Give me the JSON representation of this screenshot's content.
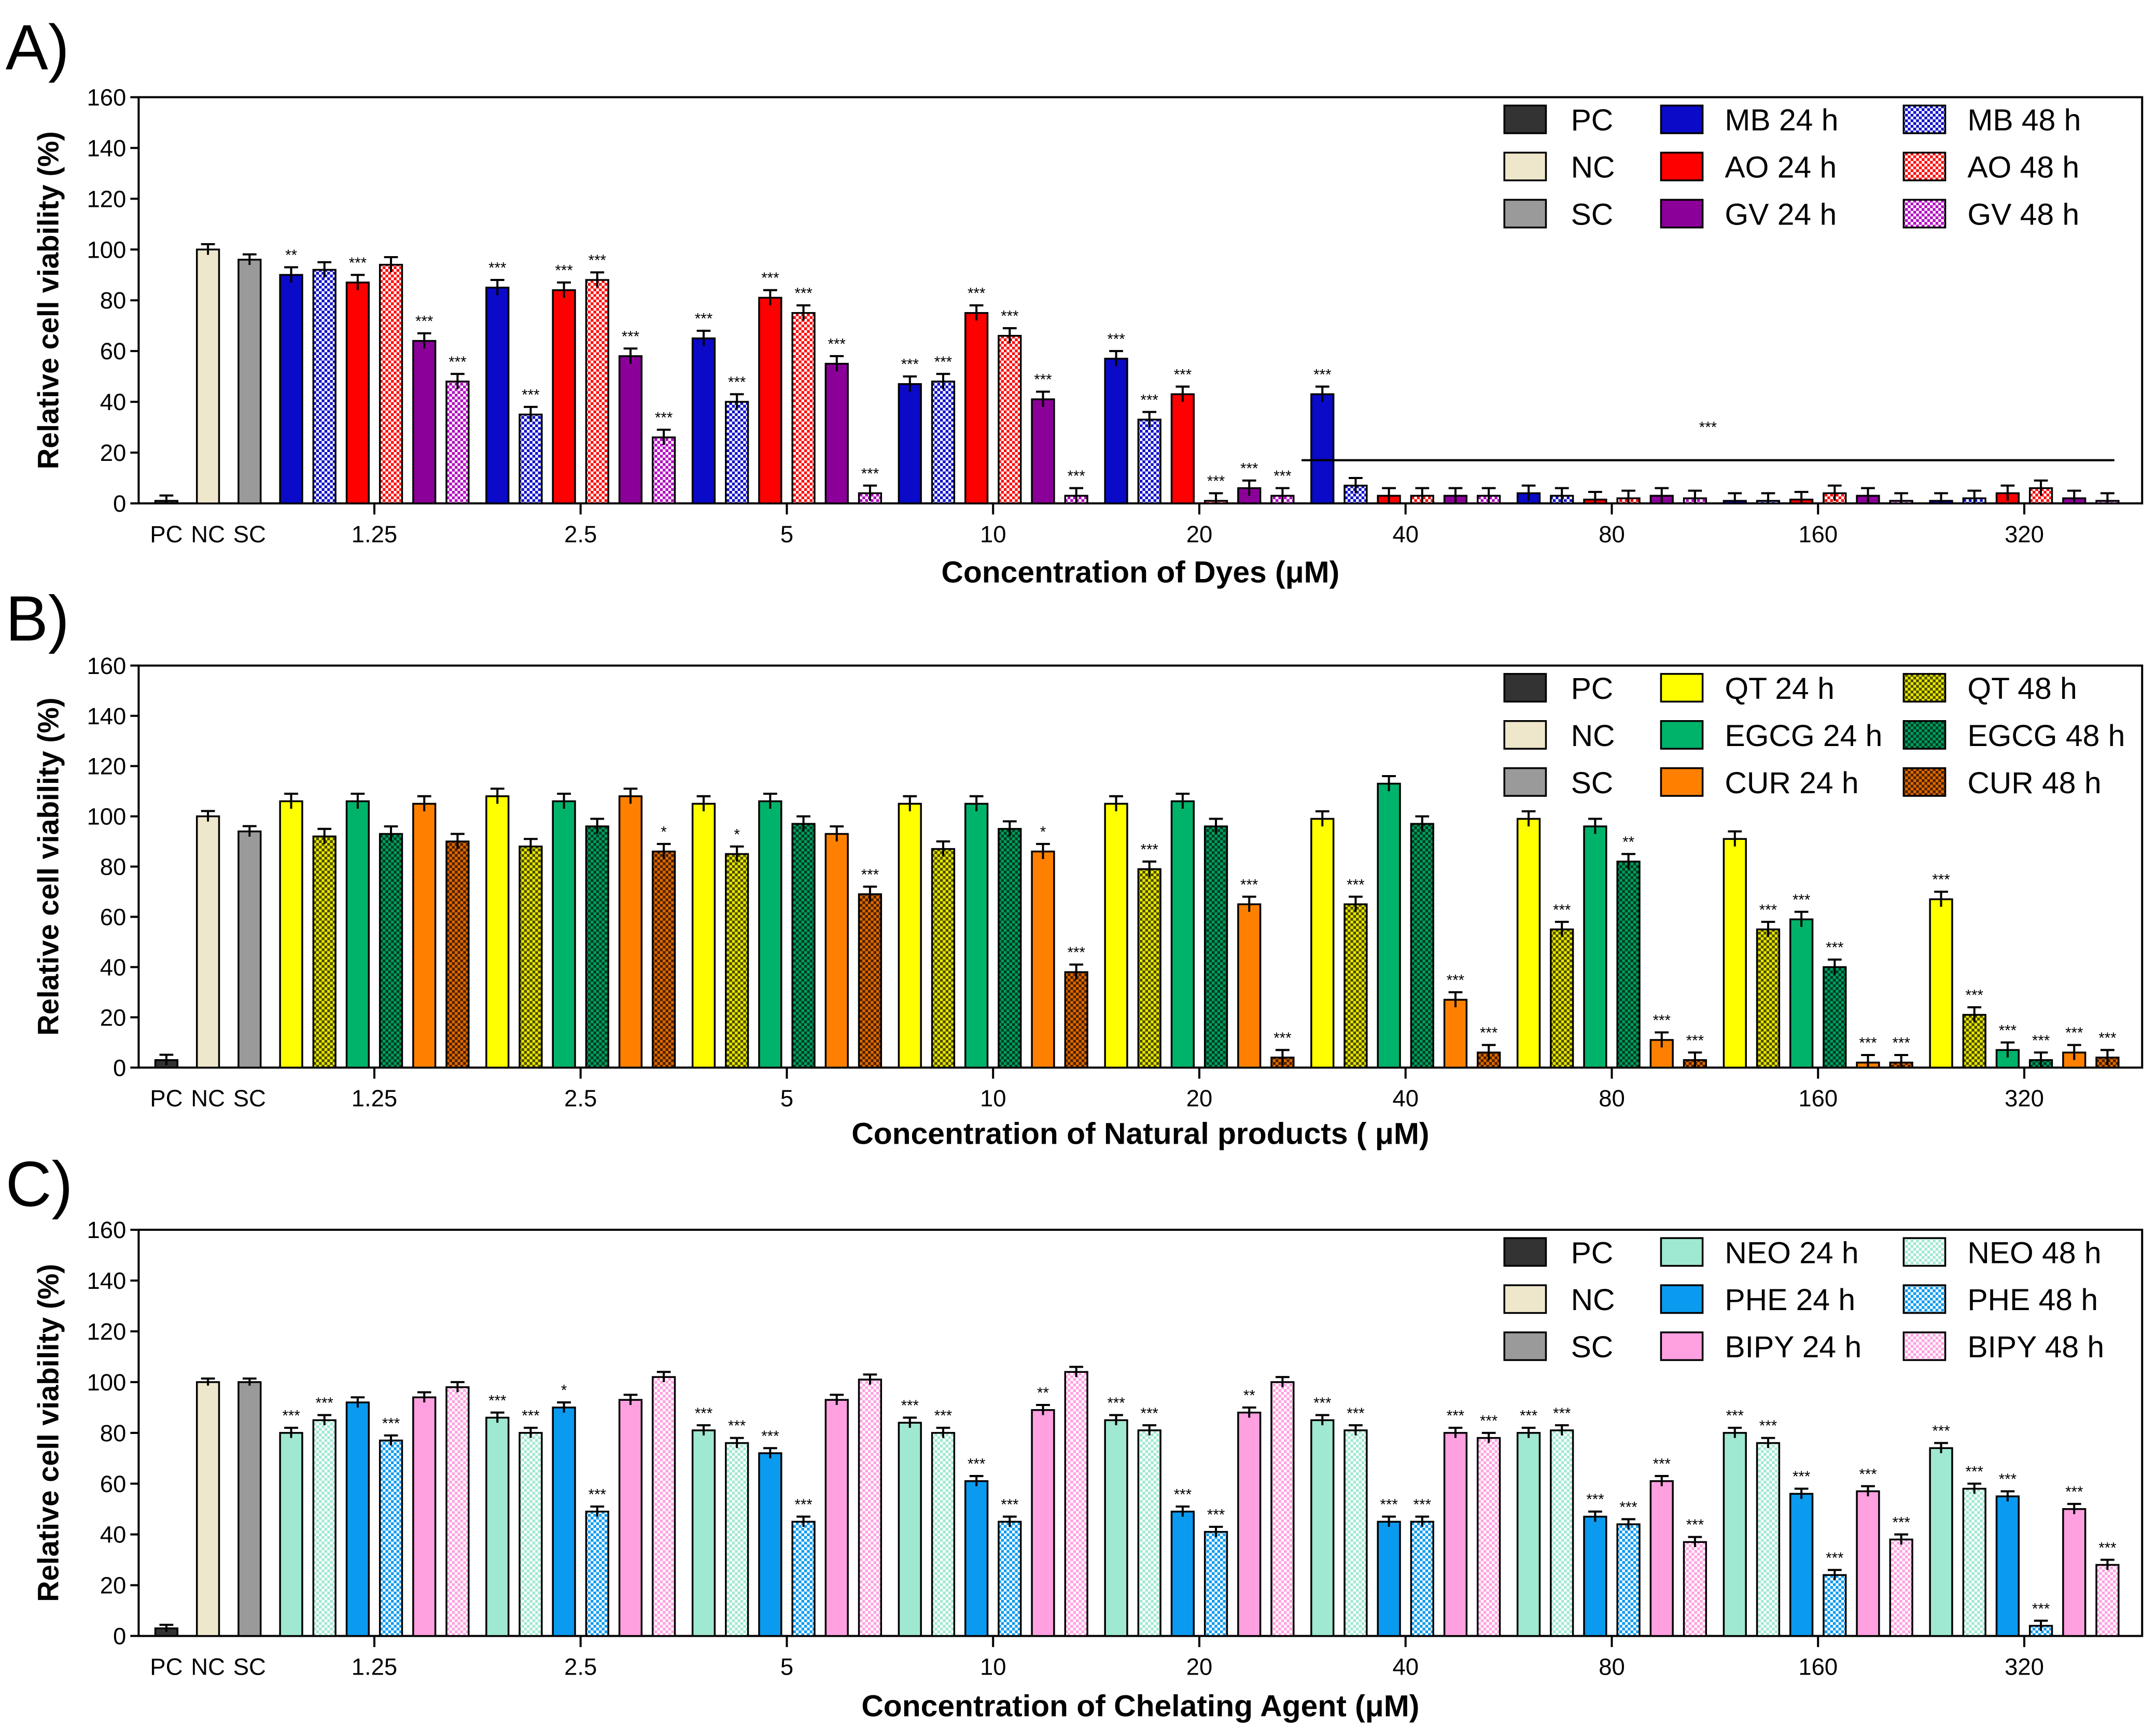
{
  "chart_data": [
    {
      "panel_label": "A)",
      "type": "bar",
      "ylabel": "Relative cell viability (%)",
      "xlabel": "Concentration of Dyes (μM)",
      "ylim": [
        0,
        160
      ],
      "yticks": [
        0,
        20,
        40,
        60,
        80,
        100,
        120,
        140,
        160
      ],
      "legend": "top-right",
      "controls": [
        {
          "name": "PC",
          "value": 1,
          "color": "#333333"
        },
        {
          "name": "NC",
          "value": 100,
          "color": "#efe7cb"
        },
        {
          "name": "SC",
          "value": 96,
          "color": "#9a9a9a"
        }
      ],
      "categories": [
        "1.25",
        "2.5",
        "5",
        "10",
        "20",
        "40",
        "80",
        "160",
        "320"
      ],
      "series": [
        {
          "name": "MB 24 h",
          "color": "#0a0ac8",
          "checkered": false,
          "values": [
            90,
            85,
            65,
            47,
            57,
            43,
            4,
            1,
            1
          ],
          "sig": [
            "**",
            "***",
            "***",
            "***",
            "***",
            "***",
            "",
            "",
            ""
          ]
        },
        {
          "name": "MB 48 h",
          "color": "#0a0ac8",
          "checkered": true,
          "check_bg": "#ffffff",
          "values": [
            92,
            35,
            40,
            48,
            33,
            7,
            3,
            1,
            2
          ],
          "sig": [
            "",
            "***",
            "***",
            "***",
            "***",
            "",
            "",
            "",
            ""
          ]
        },
        {
          "name": "AO 24 h",
          "color": "#ff0000",
          "checkered": false,
          "values": [
            87,
            84,
            81,
            75,
            43,
            3,
            1.5,
            1.5,
            4
          ],
          "sig": [
            "***",
            "***",
            "***",
            "***",
            "***",
            "",
            "",
            "",
            ""
          ]
        },
        {
          "name": "AO 48 h",
          "color": "#ff0000",
          "checkered": true,
          "check_bg": "#ffffff",
          "values": [
            94,
            88,
            75,
            66,
            1,
            3,
            2,
            4,
            6
          ],
          "sig": [
            "",
            "***",
            "***",
            "***",
            "***",
            "",
            "",
            "",
            ""
          ]
        },
        {
          "name": "GV 24 h",
          "color": "#8b0099",
          "checkered": false,
          "values": [
            64,
            58,
            55,
            41,
            6,
            3,
            3,
            3,
            2
          ],
          "sig": [
            "***",
            "***",
            "***",
            "***",
            "***",
            "",
            "",
            "",
            ""
          ]
        },
        {
          "name": "GV 48 h",
          "color": "#b000c0",
          "checkered": true,
          "check_bg": "#ffffff",
          "values": [
            48,
            26,
            4,
            3,
            3,
            3,
            2,
            1,
            1
          ],
          "sig": [
            "***",
            "***",
            "***",
            "***",
            "***",
            "",
            "",
            "",
            ""
          ]
        }
      ],
      "error_approx": 3,
      "bracket": {
        "from": "40",
        "to": "320",
        "value": 17,
        "label": "***"
      }
    },
    {
      "panel_label": "B)",
      "type": "bar",
      "ylabel": "Relative cell viability (%)",
      "xlabel": "Concentration of Natural products ( μM)",
      "ylim": [
        0,
        160
      ],
      "yticks": [
        0,
        20,
        40,
        60,
        80,
        100,
        120,
        140,
        160
      ],
      "legend": "top-right",
      "controls": [
        {
          "name": "PC",
          "value": 3,
          "color": "#333333"
        },
        {
          "name": "NC",
          "value": 100,
          "color": "#efe7cb"
        },
        {
          "name": "SC",
          "value": 94,
          "color": "#9a9a9a"
        }
      ],
      "categories": [
        "1.25",
        "2.5",
        "5",
        "10",
        "20",
        "40",
        "80",
        "160",
        "320"
      ],
      "series": [
        {
          "name": "QT 24 h",
          "color": "#ffff00",
          "checkered": false,
          "values": [
            106,
            108,
            105,
            105,
            105,
            99,
            99,
            91,
            67
          ],
          "sig": [
            "",
            "",
            "",
            "",
            "",
            "",
            "",
            "",
            "***"
          ]
        },
        {
          "name": "QT 48 h",
          "color": "#4a4a00",
          "checkered": true,
          "check_bg": "#e8e800",
          "values": [
            92,
            88,
            85,
            87,
            79,
            65,
            55,
            55,
            21
          ],
          "sig": [
            "",
            "",
            "*",
            "",
            "***",
            "***",
            "***",
            "***",
            "***"
          ]
        },
        {
          "name": "EGCG 24 h",
          "color": "#00b36b",
          "checkered": false,
          "values": [
            106,
            106,
            106,
            105,
            106,
            113,
            96,
            59,
            7
          ],
          "sig": [
            "",
            "",
            "",
            "",
            "",
            "",
            "",
            "***",
            "***"
          ]
        },
        {
          "name": "EGCG 48 h",
          "color": "#003a20",
          "checkered": true,
          "check_bg": "#00a060",
          "values": [
            93,
            96,
            97,
            95,
            96,
            97,
            82,
            40,
            3
          ],
          "sig": [
            "",
            "",
            "",
            "",
            "",
            "",
            "**",
            "***",
            "***"
          ]
        },
        {
          "name": "CUR 24 h",
          "color": "#ff8000",
          "checkered": false,
          "values": [
            105,
            108,
            93,
            86,
            65,
            27,
            11,
            2,
            6
          ],
          "sig": [
            "",
            "",
            "",
            "*",
            "***",
            "***",
            "***",
            "***",
            "***"
          ]
        },
        {
          "name": "CUR 48 h",
          "color": "#4a2000",
          "checkered": true,
          "check_bg": "#e06a00",
          "values": [
            90,
            86,
            69,
            38,
            4,
            6,
            3,
            2,
            4
          ],
          "sig": [
            "",
            "*",
            "***",
            "***",
            "***",
            "***",
            "***",
            "***",
            "***"
          ]
        }
      ],
      "error_approx": 3
    },
    {
      "panel_label": "C)",
      "type": "bar",
      "ylabel": "Relative cell viability (%)",
      "xlabel": "Concentration of Chelating Agent (μM)",
      "ylim": [
        0,
        160
      ],
      "yticks": [
        0,
        20,
        40,
        60,
        80,
        100,
        120,
        140,
        160
      ],
      "legend": "top-right",
      "controls": [
        {
          "name": "PC",
          "value": 3,
          "color": "#333333"
        },
        {
          "name": "NC",
          "value": 100,
          "color": "#efe7cb"
        },
        {
          "name": "SC",
          "value": 100,
          "color": "#9a9a9a"
        }
      ],
      "categories": [
        "1.25",
        "2.5",
        "5",
        "10",
        "20",
        "40",
        "80",
        "160",
        "320"
      ],
      "series": [
        {
          "name": "NEO 24 h",
          "color": "#9fe8d2",
          "checkered": false,
          "values": [
            80,
            86,
            81,
            84,
            85,
            85,
            80,
            80,
            74
          ],
          "sig": [
            "***",
            "***",
            "***",
            "***",
            "***",
            "***",
            "***",
            "***",
            "***"
          ]
        },
        {
          "name": "NEO 48 h",
          "color": "#9fe8d2",
          "checkered": true,
          "check_bg": "#ffffff",
          "values": [
            85,
            80,
            76,
            80,
            81,
            81,
            81,
            76,
            58
          ],
          "sig": [
            "***",
            "***",
            "***",
            "***",
            "***",
            "***",
            "***",
            "***",
            "***"
          ]
        },
        {
          "name": "PHE 24 h",
          "color": "#0a9af0",
          "checkered": false,
          "values": [
            92,
            90,
            72,
            61,
            49,
            45,
            47,
            56,
            55
          ],
          "sig": [
            "",
            "*",
            "***",
            "***",
            "***",
            "***",
            "***",
            "***",
            "***"
          ]
        },
        {
          "name": "PHE 48 h",
          "color": "#0a9af0",
          "checkered": true,
          "check_bg": "#ffffff",
          "values": [
            77,
            49,
            45,
            45,
            41,
            45,
            44,
            24,
            4
          ],
          "sig": [
            "***",
            "***",
            "***",
            "***",
            "***",
            "***",
            "***",
            "***",
            "***"
          ]
        },
        {
          "name": "BIPY 24 h",
          "color": "#ffa0e0",
          "checkered": false,
          "values": [
            94,
            93,
            93,
            89,
            88,
            80,
            61,
            57,
            50
          ],
          "sig": [
            "",
            "",
            "",
            "**",
            "**",
            "***",
            "***",
            "***",
            "***"
          ]
        },
        {
          "name": "BIPY 48 h",
          "color": "#ffa0e0",
          "checkered": true,
          "check_bg": "#ffffff",
          "values": [
            98,
            102,
            101,
            104,
            100,
            78,
            37,
            38,
            28
          ],
          "sig": [
            "",
            "",
            "",
            "",
            "",
            "***",
            "***",
            "***",
            "***"
          ]
        }
      ],
      "error_approx": 2
    }
  ]
}
